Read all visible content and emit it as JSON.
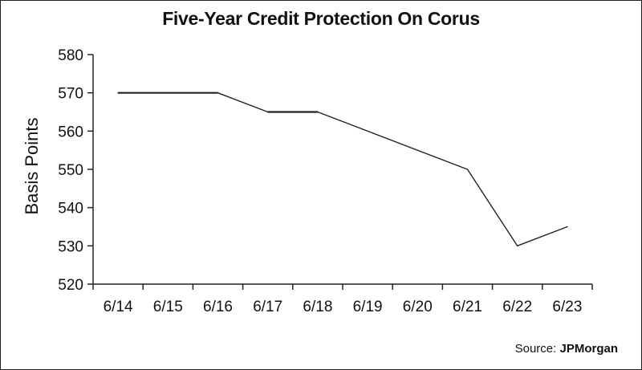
{
  "chart_data": {
    "type": "line",
    "title": "Five-Year Credit Protection On Corus",
    "xlabel": "",
    "ylabel": "Basis Points",
    "categories": [
      "6/14",
      "6/15",
      "6/16",
      "6/17",
      "6/18",
      "6/19",
      "6/20",
      "6/21",
      "6/22",
      "6/23"
    ],
    "ylim": [
      520,
      580
    ],
    "yticks": [
      520,
      530,
      540,
      550,
      560,
      570,
      580
    ],
    "series": [
      {
        "points": [
          {
            "x": "6/14",
            "y": 570
          },
          {
            "x": "6/16",
            "y": 570
          },
          {
            "x": "6/17",
            "y": 565
          },
          {
            "x": "6/18",
            "y": 565
          },
          {
            "x": "6/21",
            "y": 550
          },
          {
            "x": "6/22",
            "y": 530
          },
          {
            "x": "6/23",
            "y": 535
          }
        ]
      }
    ],
    "grid": false,
    "source_prefix": "Source: ",
    "source_name": "JPMorgan",
    "line_color": "#222222"
  }
}
